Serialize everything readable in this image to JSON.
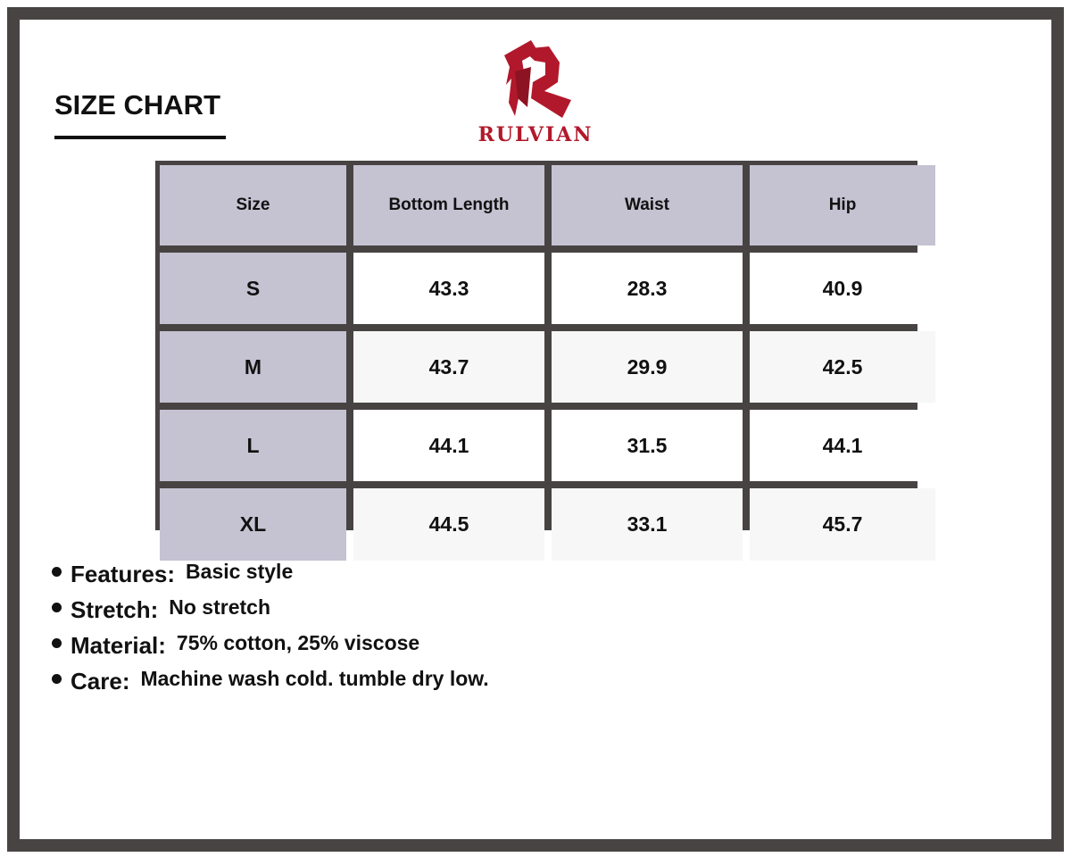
{
  "title": "SIZE CHART",
  "brand": {
    "name": "RULVIAN",
    "color": "#b2182b"
  },
  "table": {
    "headers": [
      "Size",
      "Bottom Length",
      "Waist",
      "Hip"
    ],
    "rows": [
      [
        "S",
        "43.3",
        "28.3",
        "40.9"
      ],
      [
        "M",
        "43.7",
        "29.9",
        "42.5"
      ],
      [
        "L",
        "44.1",
        "31.5",
        "44.1"
      ],
      [
        "XL",
        "44.5",
        "33.1",
        "45.7"
      ]
    ]
  },
  "specs": [
    {
      "label": "Features:",
      "value": "Basic style"
    },
    {
      "label": "Stretch:",
      "value": "No stretch"
    },
    {
      "label": "Material:",
      "value": "75% cotton, 25% viscose"
    },
    {
      "label": "Care:",
      "value": "Machine wash cold. tumble dry low."
    }
  ]
}
